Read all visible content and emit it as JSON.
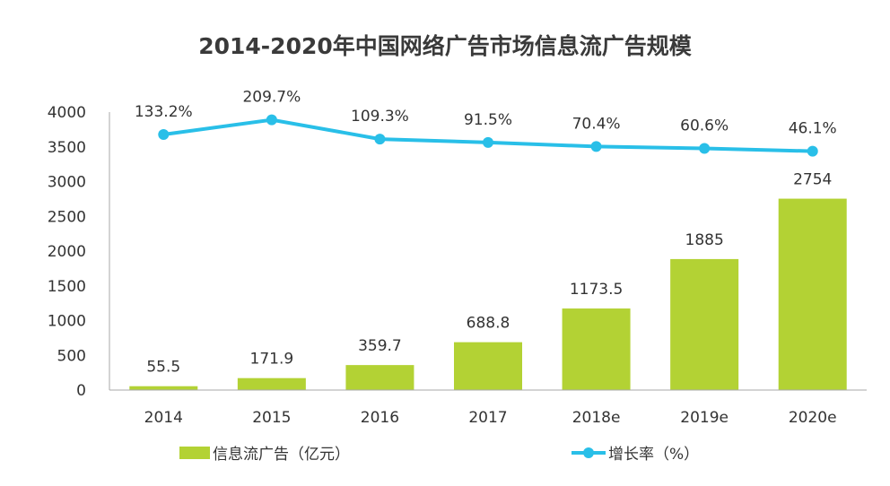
{
  "chart_data": {
    "type": "bar+line",
    "title": "2014-2020年中国网络广告市场信息流广告规模",
    "categories": [
      "2014",
      "2015",
      "2016",
      "2017",
      "2018e",
      "2019e",
      "2020e"
    ],
    "series": [
      {
        "name": "信息流广告（亿元）",
        "type": "bar",
        "axis": "left",
        "color": "#b3d234",
        "values": [
          55.5,
          171.9,
          359.7,
          688.8,
          1173.5,
          1885,
          2754
        ],
        "labels": [
          "55.5",
          "171.9",
          "359.7",
          "688.8",
          "1173.5",
          "1885",
          "2754"
        ]
      },
      {
        "name": "增长率（%）",
        "type": "line",
        "axis": "right-hidden",
        "color": "#29bfe8",
        "values": [
          133.2,
          209.7,
          109.3,
          91.5,
          70.4,
          60.6,
          46.1
        ],
        "labels": [
          "133.2%",
          "209.7%",
          "109.3%",
          "91.5%",
          "70.4%",
          "60.6%",
          "46.1%"
        ]
      }
    ],
    "ylim": [
      0,
      4000
    ],
    "yticks": [
      "0",
      "500",
      "1000",
      "1500",
      "2000",
      "2500",
      "3000",
      "3500",
      "4000"
    ],
    "y2lim": [
      -1200,
      250
    ],
    "grid": false,
    "legend": "bottom"
  }
}
